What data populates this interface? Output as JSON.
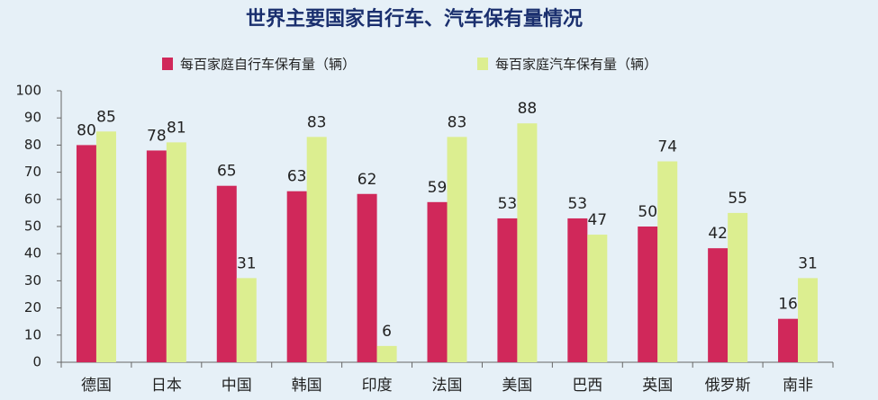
{
  "chart_data": {
    "type": "bar",
    "title": "世界主要国家自行车、汽车保有量情况",
    "categories": [
      "德国",
      "日本",
      "中国",
      "韩国",
      "印度",
      "法国",
      "美国",
      "巴西",
      "英国",
      "俄罗斯",
      "南非"
    ],
    "series": [
      {
        "name": "每百家庭自行车保有量（辆）",
        "color": "#d0285a",
        "values": [
          80,
          78,
          65,
          63,
          62,
          59,
          53,
          53,
          50,
          42,
          16
        ]
      },
      {
        "name": "每百家庭汽车保有量（辆）",
        "color": "#dcee90",
        "values": [
          85,
          81,
          31,
          83,
          6,
          83,
          88,
          47,
          74,
          55,
          31
        ]
      }
    ],
    "ylim": [
      0,
      100
    ],
    "yticks": [
      0,
      10,
      20,
      30,
      40,
      50,
      60,
      70,
      80,
      90,
      100
    ],
    "legend": "top",
    "data_labels": true
  }
}
